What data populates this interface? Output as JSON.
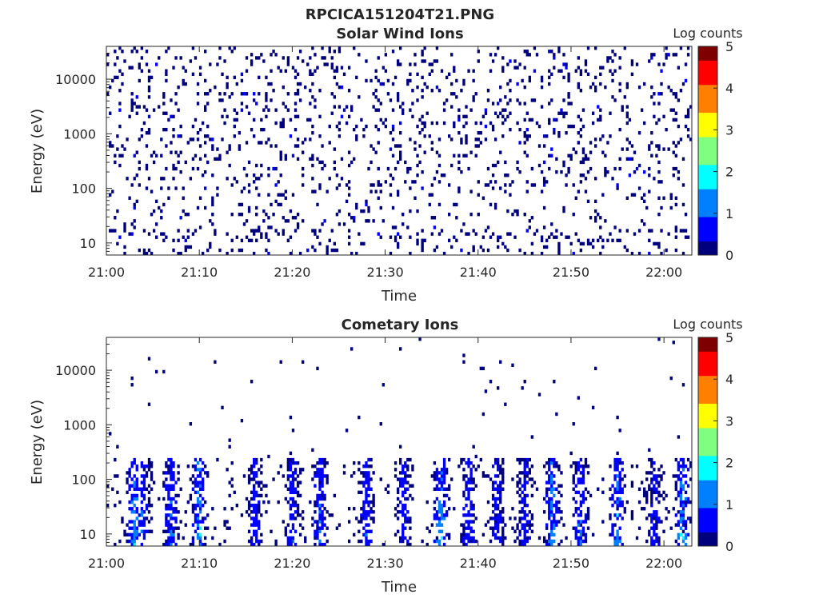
{
  "figure_title": "RPCICA151204T21.PNG",
  "colormap": [
    "#00007f",
    "#0000ff",
    "#007fff",
    "#00ffff",
    "#7fff7f",
    "#ffff00",
    "#ff7f00",
    "#ff0000",
    "#7f0000"
  ],
  "chart_data": [
    {
      "type": "heatmap",
      "title": "Solar Wind Ions",
      "xlabel": "Time",
      "ylabel": "Energy (eV)",
      "colorbar_label": "Log counts",
      "xlim": [
        "21:00",
        "22:03"
      ],
      "ylim": [
        6,
        40000
      ],
      "yscale": "log",
      "xticks": [
        "21:00",
        "21:10",
        "21:20",
        "21:30",
        "21:40",
        "21:50",
        "22:00"
      ],
      "yticks": [
        10,
        100,
        1000,
        10000
      ],
      "ytick_labels": [
        "10",
        "100",
        "1000",
        "10000"
      ],
      "clim": [
        0,
        5
      ],
      "cticks": [
        "0",
        "1",
        "2",
        "3",
        "4",
        "5"
      ],
      "pattern": "sparse single counts (log counts ~0) scattered across all energies and times, denser below 100 eV"
    },
    {
      "type": "heatmap",
      "title": "Cometary Ions",
      "xlabel": "Time",
      "ylabel": "Energy (eV)",
      "colorbar_label": "Log counts",
      "xlim": [
        "21:00",
        "22:03"
      ],
      "ylim": [
        6,
        40000
      ],
      "yscale": "log",
      "xticks": [
        "21:00",
        "21:10",
        "21:20",
        "21:30",
        "21:40",
        "21:50",
        "22:00"
      ],
      "yticks": [
        10,
        100,
        1000,
        10000
      ],
      "ytick_labels": [
        "10",
        "100",
        "1000",
        "10000"
      ],
      "clim": [
        0,
        5
      ],
      "cticks": [
        "0",
        "1",
        "2",
        "3",
        "4",
        "5"
      ],
      "bursts": [
        {
          "time": "21:03",
          "max_log_counts": 1.7
        },
        {
          "time": "21:04",
          "max_log_counts": 1.0
        },
        {
          "time": "21:07",
          "max_log_counts": 1.3
        },
        {
          "time": "21:10",
          "max_log_counts": 1.9
        },
        {
          "time": "21:16",
          "max_log_counts": 0.8
        },
        {
          "time": "21:20",
          "max_log_counts": 1.0
        },
        {
          "time": "21:23",
          "max_log_counts": 1.2
        },
        {
          "time": "21:28",
          "max_log_counts": 1.1
        },
        {
          "time": "21:32",
          "max_log_counts": 1.0
        },
        {
          "time": "21:36",
          "max_log_counts": 1.9
        },
        {
          "time": "21:39",
          "max_log_counts": 1.0
        },
        {
          "time": "21:42",
          "max_log_counts": 1.0
        },
        {
          "time": "21:45",
          "max_log_counts": 0.9
        },
        {
          "time": "21:48",
          "max_log_counts": 1.7
        },
        {
          "time": "21:51",
          "max_log_counts": 1.3
        },
        {
          "time": "21:55",
          "max_log_counts": 1.7
        },
        {
          "time": "21:59",
          "max_log_counts": 0.8
        },
        {
          "time": "22:02",
          "max_log_counts": 1.9
        }
      ],
      "pattern": "narrow low-energy bursts (mostly 6-300 eV) every ~3-4 min, sparse single counts up to ~10000 eV"
    }
  ]
}
